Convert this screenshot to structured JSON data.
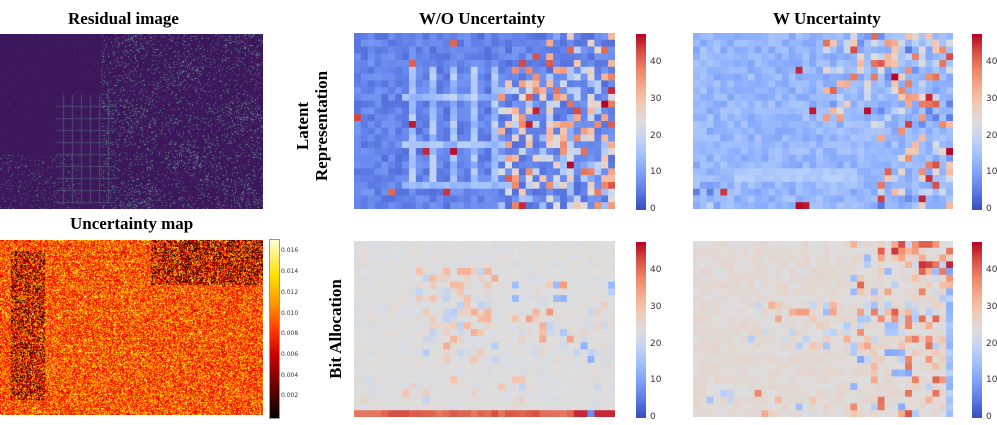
{
  "titles": {
    "residual": "Residual image",
    "uncertainty": "Uncertainty map",
    "wo": "W/O Uncertainty",
    "w": "W Uncertainty"
  },
  "row_labels": {
    "latent_line1": "Latent",
    "latent_line2": "Representation",
    "bit": "Bit Allocation"
  },
  "colorbar_main_ticks": [
    "0",
    "10",
    "20",
    "30",
    "40"
  ],
  "colorbar_uncertainty_ticks": [
    "0.002",
    "0.004",
    "0.006",
    "0.008",
    "0.010",
    "0.012",
    "0.014",
    "0.016"
  ],
  "chart_data": [
    {
      "type": "heatmap",
      "title": "W/O Uncertainty - Latent Representation",
      "colormap": "coolwarm",
      "vmin": 0,
      "vmax": 48,
      "colorbar_ticks": [
        0,
        10,
        20,
        30,
        40
      ]
    },
    {
      "type": "heatmap",
      "title": "W Uncertainty - Latent Representation",
      "colormap": "coolwarm",
      "vmin": 0,
      "vmax": 48,
      "colorbar_ticks": [
        0,
        10,
        20,
        30,
        40
      ]
    },
    {
      "type": "heatmap",
      "title": "W/O Uncertainty - Bit Allocation",
      "colormap": "coolwarm",
      "vmin": 0,
      "vmax": 48,
      "colorbar_ticks": [
        0,
        10,
        20,
        30,
        40
      ]
    },
    {
      "type": "heatmap",
      "title": "W Uncertainty - Bit Allocation",
      "colormap": "coolwarm",
      "vmin": 0,
      "vmax": 48,
      "colorbar_ticks": [
        0,
        10,
        20,
        30,
        40
      ]
    },
    {
      "type": "heatmap",
      "title": "Uncertainty map",
      "colormap": "hot",
      "vmin": 0,
      "vmax": 0.017,
      "colorbar_ticks": [
        0.002,
        0.004,
        0.006,
        0.008,
        0.01,
        0.012,
        0.014,
        0.016
      ]
    }
  ]
}
